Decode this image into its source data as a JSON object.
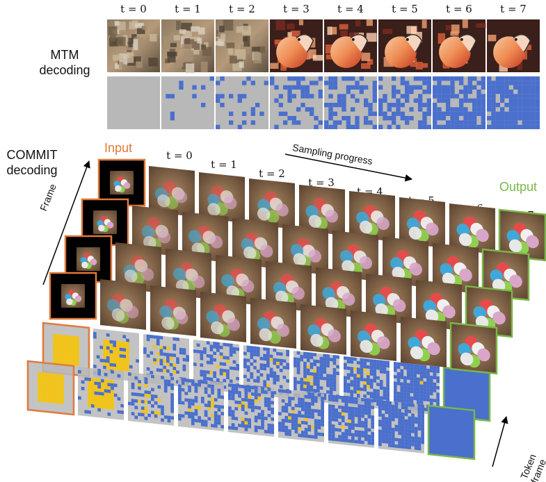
{
  "mtm": {
    "label_line1": "MTM",
    "label_line2": "decoding",
    "steps": [
      "t = 0",
      "t = 1",
      "t = 2",
      "t = 3",
      "t = 4",
      "t = 5",
      "t = 6",
      "t = 7"
    ],
    "mask_fraction": [
      0.0,
      0.06,
      0.14,
      0.26,
      0.4,
      0.55,
      0.72,
      0.9
    ]
  },
  "commit": {
    "label_line1": "COMMIT",
    "label_line2": "decoding",
    "input_label": "Input",
    "output_label": "Output",
    "progress_label": "Sampling progress",
    "frame_axis_label": "Frame",
    "token_axis_label": "Token frame",
    "steps": [
      "t = 0",
      "t = 1",
      "t = 2",
      "t = 3",
      "t = 4",
      "t = 5",
      "t = 6",
      "t = 7"
    ]
  },
  "colors": {
    "input_border": "#e0793a",
    "output_border": "#7ab648",
    "token_gray": "#b8b8b8",
    "token_blue": "#4a6fcc",
    "token_yellow": "#f2c418"
  }
}
